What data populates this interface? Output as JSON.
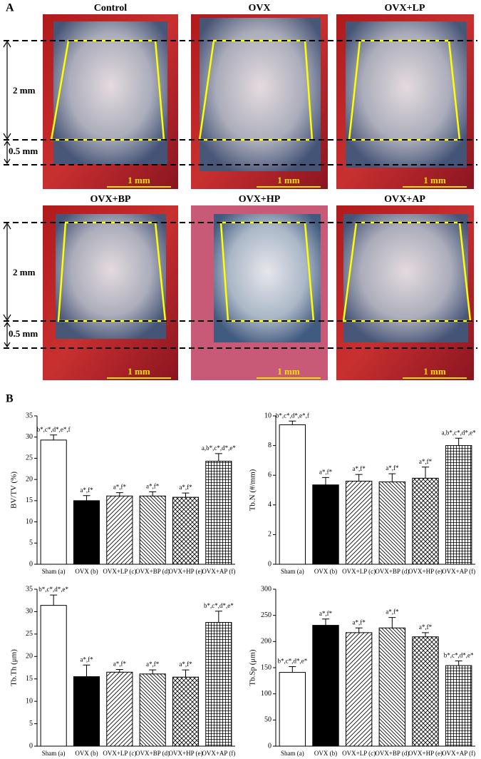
{
  "panel_a": {
    "label": "A",
    "titles": [
      "Control",
      "OVX",
      "OVX+LP",
      "OVX+BP",
      "OVX+HP",
      "OVX+AP"
    ],
    "region_labels": [
      "2 mm",
      "0.5 mm"
    ],
    "scale_bar": "1 mm"
  },
  "panel_b": {
    "label": "B"
  },
  "chart_data": [
    {
      "type": "bar",
      "y_label": "BV/TV (%)",
      "categories": [
        "Sham (a)",
        "OVX (b)",
        "OVX+LP (c)",
        "OVX+BP (d)",
        "OVX+HP (e)",
        "OVX+AP (f)"
      ],
      "values": [
        29.3,
        15.0,
        16.1,
        16.1,
        15.8,
        24.3
      ],
      "errors": [
        1.2,
        1.2,
        0.8,
        1.0,
        1.0,
        1.8
      ],
      "value_labels": [
        "b*,c*,d*,e*,f",
        "a*,f*",
        "a*,f*",
        "a*,f*",
        "a*,f*",
        "a,b*,c*,d*,e*"
      ],
      "patterns": [
        "none",
        "solid",
        "forward-diagonal",
        "back-diagonal",
        "diagonal-cross",
        "grid"
      ],
      "ylim": [
        0,
        35
      ],
      "yticks": [
        0,
        5,
        10,
        15,
        20,
        25,
        30,
        35
      ]
    },
    {
      "type": "bar",
      "y_label": "Tb.N (#/mm)",
      "categories": [
        "Sham (a)",
        "OVX (b)",
        "OVX+LP (c)",
        "OVX+BP (d)",
        "OVX+HP (e)",
        "OVX+AP (f)"
      ],
      "values": [
        9.4,
        5.35,
        5.6,
        5.55,
        5.8,
        8.0
      ],
      "errors": [
        0.25,
        0.5,
        0.45,
        0.55,
        0.75,
        0.5
      ],
      "value_labels": [
        "b*,c*,d*,e*,f",
        "a*,f*",
        "a*,f*",
        "a*,f*",
        "a*,f*",
        "a,b*,c*,d*,e*"
      ],
      "patterns": [
        "none",
        "solid",
        "forward-diagonal",
        "back-diagonal",
        "diagonal-cross",
        "grid"
      ],
      "ylim": [
        0,
        10
      ],
      "yticks": [
        0,
        2,
        4,
        6,
        8,
        10
      ]
    },
    {
      "type": "bar",
      "y_label": "Tb.Th (μm)",
      "categories": [
        "Sham (a)",
        "OVX (b)",
        "OVX+LP (c)",
        "OVX+BP (d)",
        "OVX+HP (e)",
        "OVX+AP (f)"
      ],
      "values": [
        31.4,
        15.5,
        16.5,
        16.1,
        15.4,
        27.6
      ],
      "errors": [
        2.3,
        2.6,
        0.6,
        0.9,
        1.6,
        2.5
      ],
      "value_labels": [
        "b*,c*,d*,e*",
        "a*,f*",
        "a*,f*",
        "a*,f*",
        "a*,f*",
        "b*,c*,d*,e*"
      ],
      "patterns": [
        "none",
        "solid",
        "forward-diagonal",
        "back-diagonal",
        "diagonal-cross",
        "grid"
      ],
      "ylim": [
        0,
        35
      ],
      "yticks": [
        0,
        5,
        10,
        15,
        20,
        25,
        30,
        35
      ]
    },
    {
      "type": "bar",
      "y_label": "Tb.Sp (μm)",
      "categories": [
        "Sham (a)",
        "OVX (b)",
        "OVX+LP (c)",
        "OVX+BP (d)",
        "OVX+HP (e)",
        "OVX+AP (f)"
      ],
      "values": [
        141,
        231,
        217,
        226,
        209,
        154
      ],
      "errors": [
        11,
        12,
        9,
        20,
        8,
        9
      ],
      "value_labels": [
        "b*,c*,d*,e*",
        "a*,f*",
        "a*,f*",
        "a*,f*",
        "a*,f*",
        "b*,c*,d*,e*"
      ],
      "patterns": [
        "none",
        "solid",
        "forward-diagonal",
        "back-diagonal",
        "diagonal-cross",
        "grid"
      ],
      "ylim": [
        0,
        300
      ],
      "yticks": [
        0,
        50,
        100,
        150,
        200,
        250,
        300
      ]
    }
  ]
}
